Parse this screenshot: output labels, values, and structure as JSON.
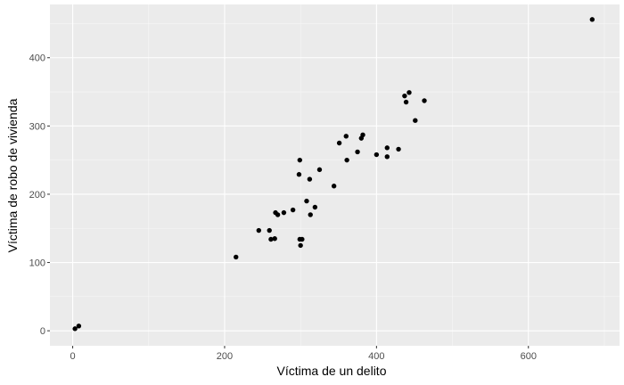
{
  "chart_data": {
    "type": "scatter",
    "xlabel": "Víctima de un delito",
    "ylabel": "Víctima de robo de vivienda",
    "xlim": [
      -30,
      720
    ],
    "ylim": [
      -22,
      478
    ],
    "xticks": [
      0,
      200,
      400,
      600
    ],
    "yticks": [
      0,
      100,
      200,
      300,
      400
    ],
    "grid": true,
    "colors": {
      "panel": "#EBEBEB",
      "grid_major": "#FFFFFF",
      "point": "#000000",
      "tick_text": "#4D4D4D"
    },
    "points": [
      {
        "x": 3,
        "y": 3
      },
      {
        "x": 8,
        "y": 7
      },
      {
        "x": 215,
        "y": 108
      },
      {
        "x": 245,
        "y": 147
      },
      {
        "x": 259,
        "y": 147
      },
      {
        "x": 261,
        "y": 134
      },
      {
        "x": 266,
        "y": 135
      },
      {
        "x": 267,
        "y": 173
      },
      {
        "x": 270,
        "y": 170
      },
      {
        "x": 278,
        "y": 173
      },
      {
        "x": 290,
        "y": 177
      },
      {
        "x": 298,
        "y": 229
      },
      {
        "x": 299,
        "y": 250
      },
      {
        "x": 299,
        "y": 134
      },
      {
        "x": 302,
        "y": 134
      },
      {
        "x": 300,
        "y": 125
      },
      {
        "x": 308,
        "y": 190
      },
      {
        "x": 312,
        "y": 222
      },
      {
        "x": 313,
        "y": 170
      },
      {
        "x": 319,
        "y": 181
      },
      {
        "x": 325,
        "y": 236
      },
      {
        "x": 344,
        "y": 212
      },
      {
        "x": 351,
        "y": 275
      },
      {
        "x": 360,
        "y": 285
      },
      {
        "x": 361,
        "y": 250
      },
      {
        "x": 375,
        "y": 262
      },
      {
        "x": 380,
        "y": 282
      },
      {
        "x": 382,
        "y": 287
      },
      {
        "x": 400,
        "y": 258
      },
      {
        "x": 414,
        "y": 268
      },
      {
        "x": 414,
        "y": 255
      },
      {
        "x": 429,
        "y": 266
      },
      {
        "x": 437,
        "y": 344
      },
      {
        "x": 439,
        "y": 335
      },
      {
        "x": 443,
        "y": 349
      },
      {
        "x": 451,
        "y": 308
      },
      {
        "x": 463,
        "y": 337
      },
      {
        "x": 684,
        "y": 456
      }
    ]
  }
}
